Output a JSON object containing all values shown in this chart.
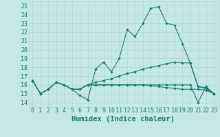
{
  "xlabel": "Humidex (Indice chaleur)",
  "bg_color": "#c5e8e5",
  "grid_color": "#afd8d4",
  "line_color": "#1a7a6e",
  "y_ticks": [
    14,
    15,
    16,
    17,
    18,
    19,
    20,
    21,
    22,
    23,
    24,
    25
  ],
  "x_ticks": [
    0,
    1,
    2,
    3,
    4,
    5,
    6,
    7,
    8,
    9,
    10,
    11,
    12,
    13,
    14,
    15,
    16,
    17,
    18,
    19,
    20,
    21,
    22,
    23
  ],
  "ylim": [
    13.5,
    25.5
  ],
  "xlim": [
    -0.5,
    23.5
  ],
  "series1": [
    16.5,
    15.0,
    15.5,
    16.3,
    16.0,
    15.5,
    14.8,
    14.3,
    17.8,
    18.6,
    17.5,
    19.0,
    22.3,
    21.5,
    23.0,
    24.7,
    24.9,
    23.0,
    22.8,
    20.7,
    18.5,
    15.8,
    15.7,
    15.0
  ],
  "series2": [
    16.5,
    15.0,
    15.5,
    16.3,
    16.0,
    15.5,
    15.5,
    16.0,
    16.0,
    16.0,
    16.0,
    16.0,
    16.0,
    16.0,
    16.0,
    15.9,
    15.8,
    15.7,
    15.6,
    15.5,
    15.5,
    15.5,
    15.4,
    15.0
  ],
  "series3": [
    16.5,
    15.0,
    15.5,
    16.3,
    16.0,
    15.5,
    15.5,
    16.0,
    16.3,
    16.5,
    16.7,
    17.0,
    17.3,
    17.5,
    17.8,
    18.0,
    18.2,
    18.4,
    18.6,
    18.5,
    18.5,
    15.8,
    15.6,
    15.0
  ],
  "series4": [
    16.5,
    15.0,
    15.5,
    16.3,
    16.0,
    15.5,
    15.5,
    16.0,
    16.0,
    16.0,
    16.0,
    16.0,
    16.0,
    16.0,
    16.0,
    16.0,
    16.0,
    16.0,
    16.0,
    16.0,
    16.0,
    14.0,
    15.8,
    15.0
  ],
  "tick_fontsize": 6,
  "label_fontsize": 7.5
}
